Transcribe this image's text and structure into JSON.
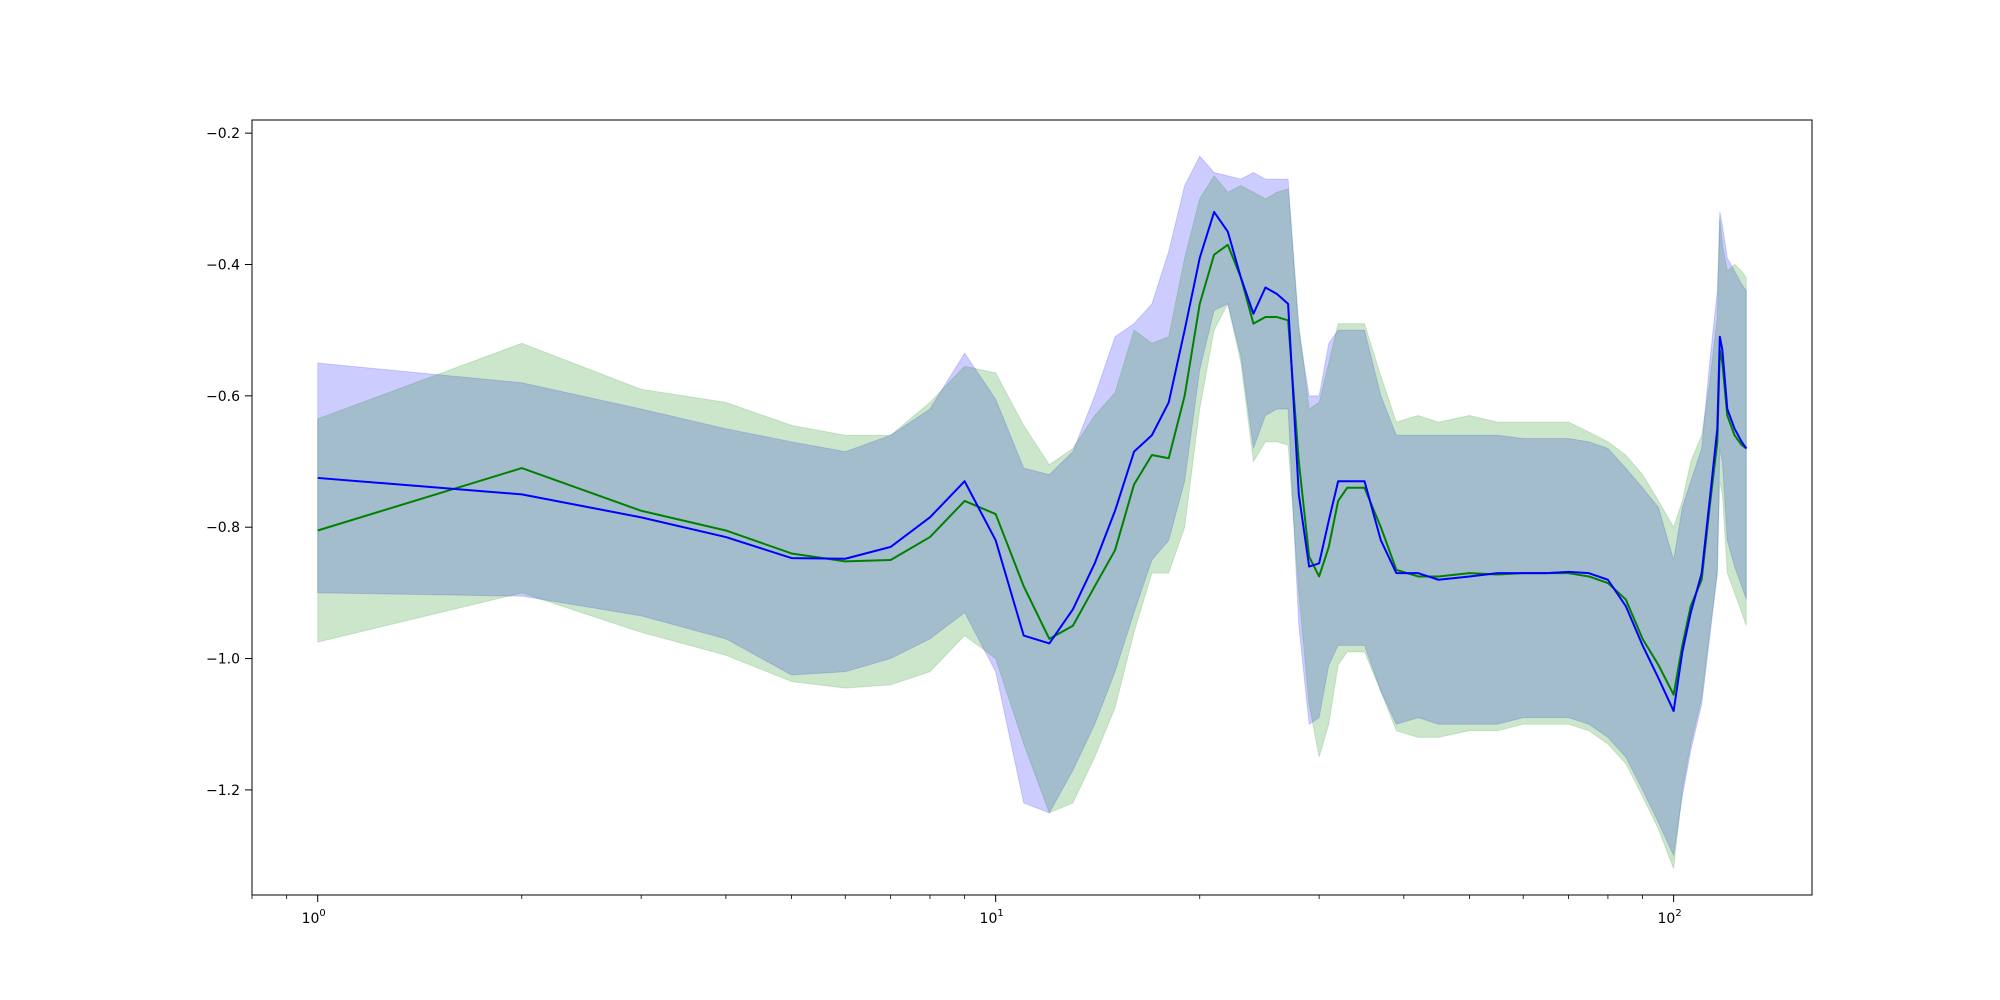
{
  "chart_data": {
    "type": "line",
    "x_scale": "log",
    "xlim": [
      0.8,
      160
    ],
    "ylim": [
      -1.36,
      -0.18
    ],
    "grid": false,
    "legend": "none",
    "title": "",
    "xlabel": "",
    "ylabel": "",
    "x_ticks": [
      {
        "value": 1,
        "base": "10",
        "exp": "0"
      },
      {
        "value": 10,
        "base": "10",
        "exp": "1"
      },
      {
        "value": 100,
        "base": "10",
        "exp": "2"
      }
    ],
    "y_ticks": [
      {
        "value": -0.2,
        "label": "−0.2"
      },
      {
        "value": -0.4,
        "label": "−0.4"
      },
      {
        "value": -0.6,
        "label": "−0.6"
      },
      {
        "value": -0.8,
        "label": "−0.8"
      },
      {
        "value": -1.0,
        "label": "−1.0"
      },
      {
        "value": -1.2,
        "label": "−1.2"
      }
    ],
    "x": [
      1,
      2,
      3,
      4,
      5,
      6,
      7,
      8,
      9,
      10,
      11,
      12,
      13,
      14,
      15,
      16,
      17,
      18,
      19,
      20,
      21,
      22,
      23,
      24,
      25,
      26,
      27,
      28,
      29,
      30,
      31,
      32,
      33,
      35,
      37,
      39,
      42,
      45,
      50,
      55,
      60,
      65,
      70,
      75,
      80,
      85,
      90,
      95,
      100,
      103,
      106,
      110,
      113,
      116,
      117,
      118,
      120,
      123,
      126,
      128
    ],
    "series": [
      {
        "color": "#0000ff",
        "band_color": "#0000ff",
        "band_opacity": 0.2,
        "values": [
          -0.725,
          -0.75,
          -0.785,
          -0.815,
          -0.847,
          -0.848,
          -0.83,
          -0.785,
          -0.73,
          -0.82,
          -0.965,
          -0.977,
          -0.925,
          -0.855,
          -0.775,
          -0.685,
          -0.66,
          -0.61,
          -0.5,
          -0.39,
          -0.32,
          -0.35,
          -0.42,
          -0.475,
          -0.435,
          -0.445,
          -0.46,
          -0.75,
          -0.86,
          -0.855,
          -0.79,
          -0.73,
          -0.73,
          -0.73,
          -0.82,
          -0.87,
          -0.87,
          -0.88,
          -0.875,
          -0.87,
          -0.87,
          -0.87,
          -0.868,
          -0.87,
          -0.88,
          -0.92,
          -0.98,
          -1.03,
          -1.08,
          -0.99,
          -0.93,
          -0.87,
          -0.76,
          -0.65,
          -0.51,
          -0.53,
          -0.62,
          -0.65,
          -0.67,
          -0.68
        ],
        "upper": [
          -0.55,
          -0.58,
          -0.62,
          -0.65,
          -0.67,
          -0.685,
          -0.66,
          -0.62,
          -0.535,
          -0.605,
          -0.71,
          -0.72,
          -0.685,
          -0.6,
          -0.51,
          -0.49,
          -0.46,
          -0.38,
          -0.28,
          -0.235,
          -0.26,
          -0.265,
          -0.27,
          -0.26,
          -0.27,
          -0.27,
          -0.27,
          -0.5,
          -0.6,
          -0.6,
          -0.52,
          -0.5,
          -0.5,
          -0.5,
          -0.6,
          -0.66,
          -0.66,
          -0.66,
          -0.66,
          -0.66,
          -0.665,
          -0.665,
          -0.665,
          -0.67,
          -0.68,
          -0.71,
          -0.74,
          -0.77,
          -0.85,
          -0.77,
          -0.73,
          -0.68,
          -0.55,
          -0.44,
          -0.32,
          -0.34,
          -0.39,
          -0.41,
          -0.43,
          -0.44
        ],
        "lower": [
          -0.9,
          -0.905,
          -0.935,
          -0.97,
          -1.025,
          -1.02,
          -1.0,
          -0.97,
          -0.93,
          -1.02,
          -1.22,
          -1.235,
          -1.17,
          -1.1,
          -1.02,
          -0.93,
          -0.85,
          -0.82,
          -0.73,
          -0.56,
          -0.47,
          -0.46,
          -0.54,
          -0.68,
          -0.63,
          -0.62,
          -0.62,
          -0.95,
          -1.1,
          -1.09,
          -1.01,
          -0.98,
          -0.98,
          -0.98,
          -1.05,
          -1.1,
          -1.09,
          -1.1,
          -1.1,
          -1.1,
          -1.09,
          -1.09,
          -1.09,
          -1.1,
          -1.12,
          -1.15,
          -1.2,
          -1.25,
          -1.3,
          -1.21,
          -1.14,
          -1.07,
          -0.97,
          -0.87,
          -0.68,
          -0.7,
          -0.82,
          -0.86,
          -0.89,
          -0.91
        ]
      },
      {
        "color": "#008000",
        "band_color": "#008000",
        "band_opacity": 0.2,
        "values": [
          -0.805,
          -0.71,
          -0.775,
          -0.805,
          -0.84,
          -0.852,
          -0.85,
          -0.815,
          -0.76,
          -0.78,
          -0.89,
          -0.97,
          -0.95,
          -0.89,
          -0.835,
          -0.735,
          -0.69,
          -0.695,
          -0.6,
          -0.46,
          -0.385,
          -0.37,
          -0.42,
          -0.49,
          -0.48,
          -0.48,
          -0.485,
          -0.7,
          -0.845,
          -0.875,
          -0.83,
          -0.76,
          -0.74,
          -0.74,
          -0.8,
          -0.865,
          -0.875,
          -0.875,
          -0.87,
          -0.872,
          -0.87,
          -0.87,
          -0.87,
          -0.875,
          -0.885,
          -0.91,
          -0.97,
          -1.01,
          -1.055,
          -0.98,
          -0.92,
          -0.88,
          -0.77,
          -0.67,
          -0.53,
          -0.55,
          -0.63,
          -0.66,
          -0.675,
          -0.68
        ],
        "upper": [
          -0.635,
          -0.52,
          -0.59,
          -0.61,
          -0.645,
          -0.66,
          -0.66,
          -0.61,
          -0.555,
          -0.565,
          -0.645,
          -0.705,
          -0.68,
          -0.63,
          -0.595,
          -0.5,
          -0.52,
          -0.51,
          -0.39,
          -0.3,
          -0.265,
          -0.29,
          -0.28,
          -0.29,
          -0.3,
          -0.29,
          -0.285,
          -0.49,
          -0.62,
          -0.61,
          -0.55,
          -0.49,
          -0.49,
          -0.49,
          -0.57,
          -0.64,
          -0.63,
          -0.64,
          -0.63,
          -0.64,
          -0.64,
          -0.64,
          -0.64,
          -0.655,
          -0.67,
          -0.69,
          -0.72,
          -0.76,
          -0.8,
          -0.76,
          -0.7,
          -0.66,
          -0.58,
          -0.48,
          -0.33,
          -0.37,
          -0.41,
          -0.4,
          -0.41,
          -0.42
        ],
        "lower": [
          -0.975,
          -0.9,
          -0.96,
          -0.995,
          -1.035,
          -1.045,
          -1.04,
          -1.02,
          -0.965,
          -1.0,
          -1.13,
          -1.235,
          -1.22,
          -1.15,
          -1.075,
          -0.96,
          -0.87,
          -0.87,
          -0.8,
          -0.62,
          -0.5,
          -0.46,
          -0.55,
          -0.7,
          -0.67,
          -0.67,
          -0.675,
          -0.9,
          -1.07,
          -1.15,
          -1.1,
          -1.01,
          -0.99,
          -0.99,
          -1.05,
          -1.11,
          -1.12,
          -1.12,
          -1.11,
          -1.11,
          -1.1,
          -1.1,
          -1.1,
          -1.11,
          -1.13,
          -1.16,
          -1.21,
          -1.26,
          -1.32,
          -1.2,
          -1.13,
          -1.06,
          -0.96,
          -0.87,
          -0.73,
          -0.75,
          -0.87,
          -0.9,
          -0.93,
          -0.95
        ]
      }
    ]
  }
}
